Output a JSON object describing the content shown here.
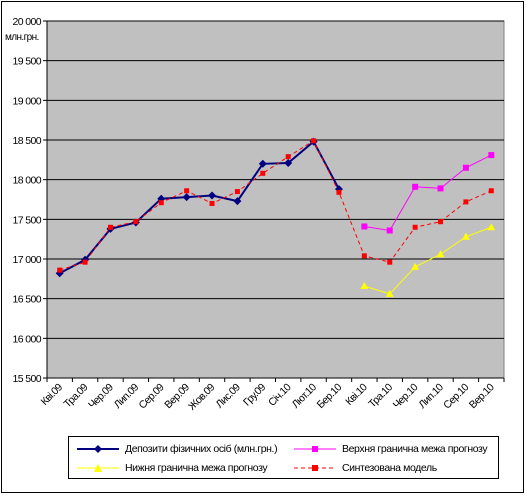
{
  "chart_data": {
    "type": "line",
    "ylabel": "млн.грн.",
    "ylim": [
      15500,
      20000
    ],
    "yticks": [
      15500,
      16000,
      16500,
      17000,
      17500,
      18000,
      18500,
      19000,
      19500,
      20000
    ],
    "ytick_labels": [
      "15 500",
      "16 000",
      "16 500",
      "17 000",
      "17 500",
      "18 000",
      "18 500",
      "19 000",
      "19 500",
      "20 000"
    ],
    "categories": [
      "Кві.09",
      "Тра.09",
      "Чер.09",
      "Лип.09",
      "Сер.09",
      "Вер.09",
      "Жов.09",
      "Лис.09",
      "Гру.09",
      "Січ.10",
      "Лют.10",
      "Бер.10",
      "Кві.10",
      "Тра.10",
      "Чер.10",
      "Лип.10",
      "Сер.10",
      "Вер.10"
    ],
    "grid": true,
    "plot_bg": "#c0c0c0",
    "series": [
      {
        "name": "Депозити фізичних осіб (млн.грн.)",
        "color": "#000080",
        "style": "solid",
        "marker": "diamond",
        "values": [
          16820,
          16990,
          17380,
          17460,
          17760,
          17780,
          17800,
          17730,
          18200,
          18210,
          18480,
          17880,
          null,
          null,
          null,
          null,
          null,
          null
        ]
      },
      {
        "name": "Верхня гранична межа прогнозу",
        "color": "#ff00ff",
        "style": "solid",
        "marker": "square",
        "values": [
          null,
          null,
          null,
          null,
          null,
          null,
          null,
          null,
          null,
          null,
          null,
          null,
          17410,
          17360,
          17910,
          17890,
          18150,
          18310
        ]
      },
      {
        "name": "Нижня гранична межа прогнозу",
        "color": "#ffff00",
        "style": "solid",
        "marker": "triangle",
        "values": [
          null,
          null,
          null,
          null,
          null,
          null,
          null,
          null,
          null,
          null,
          null,
          null,
          16660,
          16560,
          16900,
          17060,
          17280,
          17400
        ]
      },
      {
        "name": "Синтезована модель",
        "color": "#ff0000",
        "style": "dashed",
        "marker": "square",
        "values": [
          16860,
          16960,
          17400,
          17470,
          17710,
          17860,
          17700,
          17850,
          18080,
          18290,
          18490,
          17840,
          17040,
          16960,
          17400,
          17470,
          17720,
          17860
        ]
      }
    ]
  }
}
